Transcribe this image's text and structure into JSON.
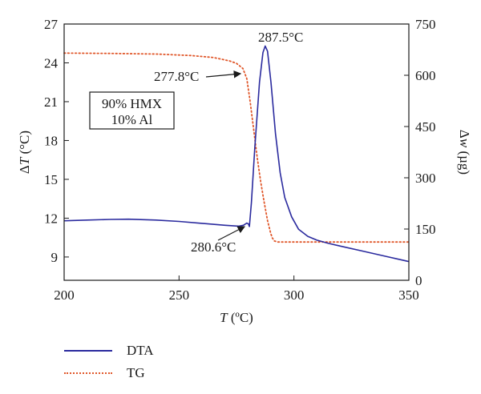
{
  "chart_data": {
    "type": "line",
    "xlabel_italic": "T",
    "xlabel_unit": " (ºC)",
    "ylabel_left_prefix": "Δ",
    "ylabel_left_italic": "T",
    "ylabel_left_unit": " (°C)",
    "ylabel_right_prefix": "Δ",
    "ylabel_right_italic": "w",
    "ylabel_right_unit": " (µg)",
    "xlim": [
      200,
      350
    ],
    "ylim_left": [
      7.2,
      27
    ],
    "ylim_right": [
      0,
      750
    ],
    "x_ticks": [
      "200",
      "250",
      "300",
      "350"
    ],
    "y_left_ticks": [
      "9",
      "12",
      "15",
      "18",
      "21",
      "24",
      "27"
    ],
    "y_right_ticks": [
      "0",
      "150",
      "300",
      "450",
      "600",
      "750"
    ],
    "box_lines": [
      "90% HMX",
      "10% Al"
    ],
    "series": [
      {
        "name": "DTA",
        "axis": "left",
        "color": "#2a2a9e",
        "style": "solid",
        "x": [
          200,
          210,
          220,
          228,
          240,
          250,
          260,
          270,
          276,
          278,
          279.5,
          280.2,
          280.6,
          281.5,
          283,
          285,
          286.5,
          287.5,
          288.5,
          290,
          292,
          294,
          296,
          299,
          302,
          306,
          310,
          315,
          320,
          330,
          340,
          350
        ],
        "y": [
          11.8,
          11.85,
          11.9,
          11.92,
          11.85,
          11.75,
          11.6,
          11.45,
          11.38,
          11.45,
          11.62,
          11.55,
          11.35,
          13.2,
          17.5,
          22.5,
          24.8,
          25.3,
          24.9,
          22.5,
          18.5,
          15.5,
          13.6,
          12.1,
          11.15,
          10.6,
          10.3,
          10.05,
          9.85,
          9.45,
          9.05,
          8.65
        ]
      },
      {
        "name": "TG",
        "axis": "right",
        "color": "#e0572a",
        "style": "dotted",
        "x": [
          200,
          220,
          240,
          255,
          265,
          272,
          275,
          277.8,
          279.5,
          281,
          282.5,
          284,
          285.5,
          287,
          288.5,
          289.8,
          290.5,
          291.5,
          293,
          300,
          320,
          350
        ],
        "y": [
          665,
          664,
          662,
          658,
          652,
          642,
          635,
          620,
          590,
          520,
          440,
          360,
          290,
          230,
          175,
          140,
          125,
          115,
          112,
          112,
          112,
          112
        ]
      }
    ],
    "annotations": [
      {
        "text": "287.5°C",
        "x": 287.5,
        "y": 25.3
      },
      {
        "text": "277.8°C",
        "x": 277.8,
        "y": 24.0
      },
      {
        "text": "280.6°C",
        "x": 280.6,
        "y": 11.35
      }
    ]
  },
  "legend": [
    {
      "label": "DTA"
    },
    {
      "label": "TG"
    }
  ]
}
